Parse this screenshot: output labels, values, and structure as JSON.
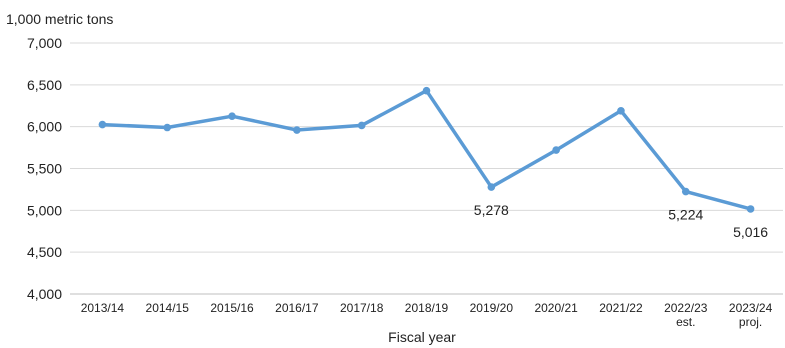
{
  "chart_data": {
    "type": "line",
    "ylabel": "1,000 metric tons",
    "xlabel": "Fiscal year",
    "categories": [
      "2013/14",
      "2014/15",
      "2015/16",
      "2016/17",
      "2017/18",
      "2018/19",
      "2019/20",
      "2020/21",
      "2021/22",
      "2022/23",
      "2023/24"
    ],
    "category_sublabels": [
      "",
      "",
      "",
      "",
      "",
      "",
      "",
      "",
      "",
      "est.",
      "proj."
    ],
    "series": [
      {
        "values": [
          6025,
          5990,
          6125,
          5960,
          6015,
          6430,
          5278,
          5720,
          6190,
          5224,
          5016
        ]
      }
    ],
    "ylim": [
      4000,
      7000
    ],
    "yticks": [
      4000,
      4500,
      5000,
      5500,
      6000,
      6500,
      7000
    ],
    "ytick_labels": [
      "4,000",
      "4,500",
      "5,000",
      "5,500",
      "6,000",
      "6,500",
      "7,000"
    ],
    "data_labels": [
      {
        "index": 6,
        "text": "5,278"
      },
      {
        "index": 9,
        "text": "5,224"
      },
      {
        "index": 10,
        "text": "5,016"
      }
    ],
    "grid": true,
    "line_color": "#5b9bd5"
  }
}
